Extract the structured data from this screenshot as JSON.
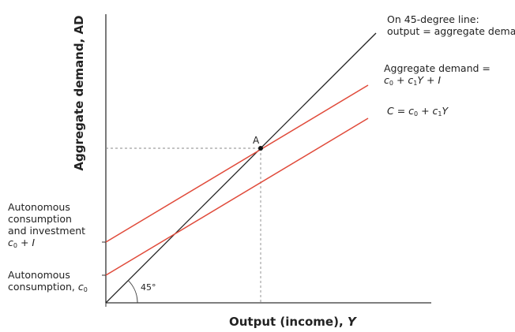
{
  "axes": {
    "y_title": "Aggregate demand, AD",
    "x_title_text": "Output (income), ",
    "x_title_var": "Y"
  },
  "lines": {
    "line_45": {
      "line1": "On 45-degree line:",
      "line2": "output = aggregate demand"
    },
    "ad": {
      "line1": "Aggregate demand =",
      "c": "c",
      "sub0": "0",
      "plus1": " + ",
      "c1": "c",
      "sub1": "1",
      "y": "Y",
      "plus2": " + ",
      "i": "I"
    },
    "consumption": {
      "c_var": "C",
      "eq": " = ",
      "c": "c",
      "sub0": "0",
      "plus": " + ",
      "c1": "c",
      "sub1": "1",
      "y": "Y"
    }
  },
  "intercepts": {
    "autonomous_ci": {
      "line1": "Autonomous",
      "line2": "consumption",
      "line3": "and investment",
      "c": "c",
      "sub0": "0",
      "plus": " + ",
      "i": "I"
    },
    "autonomous_c": {
      "line1": "Autonomous",
      "line2": "consumption, ",
      "c": "c",
      "sub0": "0"
    }
  },
  "point_label": "A",
  "angle_label": "45°",
  "colors": {
    "axis": "#333333",
    "line_45": "#222222",
    "demand_lines": "#e04a3a",
    "guides": "#888888",
    "text": "#222222"
  }
}
